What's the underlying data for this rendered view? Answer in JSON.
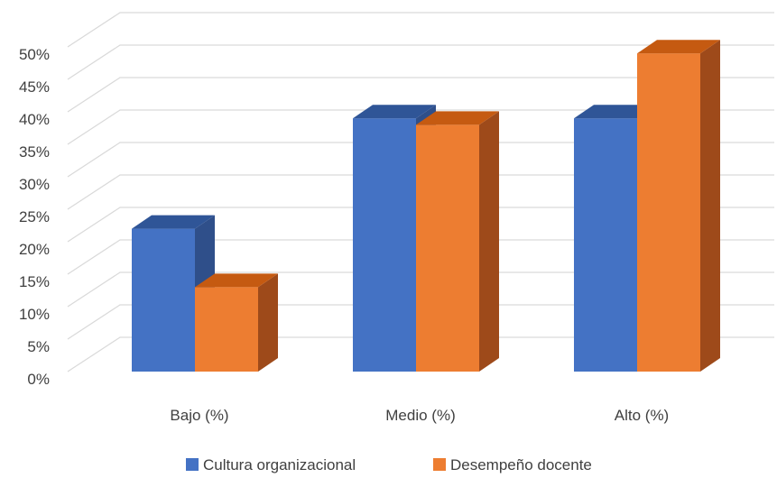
{
  "chart_data": {
    "type": "bar",
    "categories": [
      "Bajo (%)",
      "Medio (%)",
      "Alto (%)"
    ],
    "series": [
      {
        "name": "Cultura organizacional",
        "values": [
          22,
          39,
          39
        ],
        "color": "#4472C4",
        "top_color": "#2F5597",
        "side_color": "#2F4F8A"
      },
      {
        "name": "Desempeño docente",
        "values": [
          13,
          38,
          49
        ],
        "color": "#ED7D31",
        "top_color": "#C55A11",
        "side_color": "#9E4A1A"
      }
    ],
    "ylim": [
      0,
      50
    ],
    "yticks": [
      "0%",
      "5%",
      "10%",
      "15%",
      "20%",
      "25%",
      "30%",
      "35%",
      "40%",
      "45%",
      "50%"
    ],
    "grid": true,
    "legend_position": "bottom",
    "title": "",
    "xlabel": "",
    "ylabel": ""
  }
}
